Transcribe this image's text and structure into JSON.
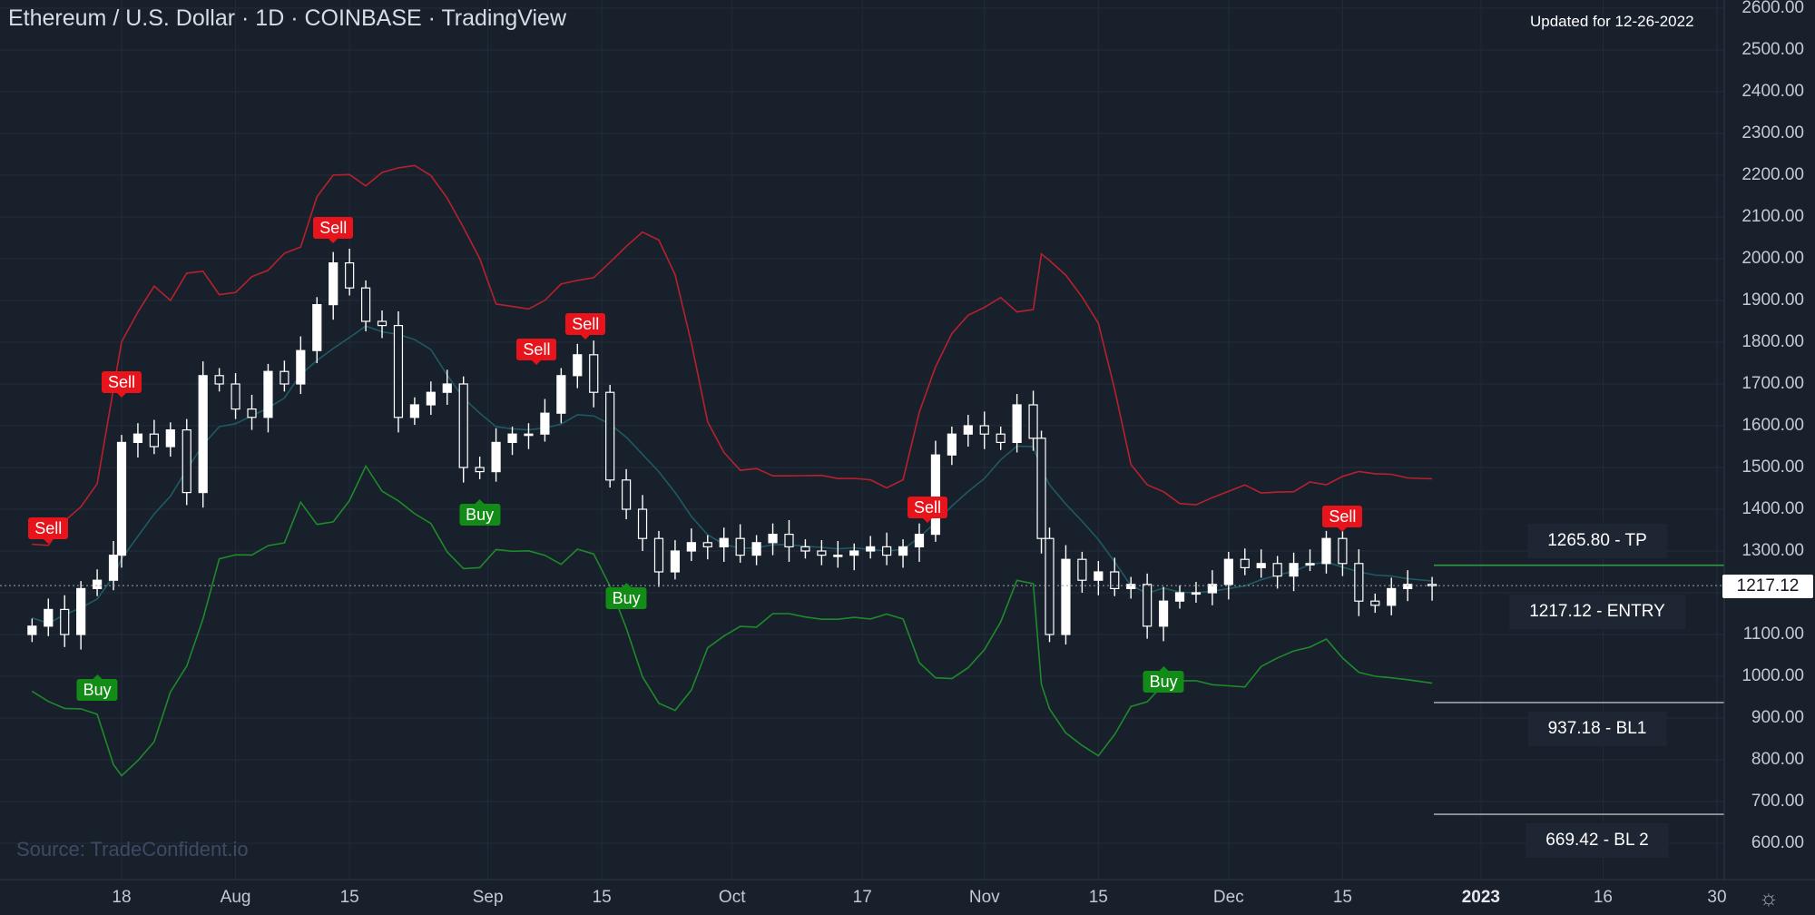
{
  "header": {
    "title": "Ethereum / U.S. Dollar · 1D · COINBASE · TradingView",
    "updated": "Updated for 12-26-2022"
  },
  "source": "Source: TradeConfident.io",
  "colors": {
    "background": "#18202c",
    "upper_band": "#b7212c",
    "lower_band": "#1e8a2a",
    "mid_line": "#1e5a62",
    "sell": "#e8141c",
    "buy": "#138c17",
    "tp_line": "#2e9a46",
    "level_line": "#a0a4ad"
  },
  "chart_data": {
    "type": "candlestick",
    "ylim": [
      550,
      2620
    ],
    "yticks": [
      "2600.00",
      "2500.00",
      "2400.00",
      "2300.00",
      "2200.00",
      "2100.00",
      "2000.00",
      "1900.00",
      "1800.00",
      "1700.00",
      "1600.00",
      "1500.00",
      "1400.00",
      "1300.00",
      "1200.00",
      "1100.00",
      "1000.00",
      "900.00",
      "800.00",
      "700.00",
      "600.00"
    ],
    "x_range": [
      "2022-07-07",
      "2023-01-30"
    ],
    "xticks": [
      {
        "date": "2022-07-18",
        "label": "18",
        "bold": false
      },
      {
        "date": "2022-08-01",
        "label": "Aug",
        "bold": false
      },
      {
        "date": "2022-08-15",
        "label": "15",
        "bold": false
      },
      {
        "date": "2022-09-01",
        "label": "Sep",
        "bold": false
      },
      {
        "date": "2022-09-15",
        "label": "15",
        "bold": false
      },
      {
        "date": "2022-10-01",
        "label": "Oct",
        "bold": false
      },
      {
        "date": "2022-10-17",
        "label": "17",
        "bold": false
      },
      {
        "date": "2022-11-01",
        "label": "Nov",
        "bold": false
      },
      {
        "date": "2022-11-15",
        "label": "15",
        "bold": false
      },
      {
        "date": "2022-12-01",
        "label": "Dec",
        "bold": false
      },
      {
        "date": "2022-12-15",
        "label": "15",
        "bold": false
      },
      {
        "date": "2023-01-01",
        "label": "2023",
        "bold": true
      },
      {
        "date": "2023-01-16",
        "label": "16",
        "bold": false
      },
      {
        "date": "2023-01-30",
        "label": "30",
        "bold": false
      }
    ],
    "close_series": [
      {
        "date": "2022-07-07",
        "close": 1120
      },
      {
        "date": "2022-07-09",
        "close": 1160
      },
      {
        "date": "2022-07-11",
        "close": 1100
      },
      {
        "date": "2022-07-13",
        "close": 1210
      },
      {
        "date": "2022-07-15",
        "close": 1230
      },
      {
        "date": "2022-07-17",
        "close": 1290
      },
      {
        "date": "2022-07-18",
        "close": 1560
      },
      {
        "date": "2022-07-20",
        "close": 1580
      },
      {
        "date": "2022-07-22",
        "close": 1550
      },
      {
        "date": "2022-07-24",
        "close": 1590
      },
      {
        "date": "2022-07-26",
        "close": 1440
      },
      {
        "date": "2022-07-28",
        "close": 1720
      },
      {
        "date": "2022-07-30",
        "close": 1700
      },
      {
        "date": "2022-08-01",
        "close": 1640
      },
      {
        "date": "2022-08-03",
        "close": 1620
      },
      {
        "date": "2022-08-05",
        "close": 1730
      },
      {
        "date": "2022-08-07",
        "close": 1700
      },
      {
        "date": "2022-08-09",
        "close": 1780
      },
      {
        "date": "2022-08-11",
        "close": 1890
      },
      {
        "date": "2022-08-13",
        "close": 1990
      },
      {
        "date": "2022-08-15",
        "close": 1930
      },
      {
        "date": "2022-08-17",
        "close": 1850
      },
      {
        "date": "2022-08-19",
        "close": 1840
      },
      {
        "date": "2022-08-21",
        "close": 1620
      },
      {
        "date": "2022-08-23",
        "close": 1650
      },
      {
        "date": "2022-08-25",
        "close": 1680
      },
      {
        "date": "2022-08-27",
        "close": 1700
      },
      {
        "date": "2022-08-29",
        "close": 1500
      },
      {
        "date": "2022-08-31",
        "close": 1490
      },
      {
        "date": "2022-09-02",
        "close": 1560
      },
      {
        "date": "2022-09-04",
        "close": 1580
      },
      {
        "date": "2022-09-06",
        "close": 1580
      },
      {
        "date": "2022-09-08",
        "close": 1630
      },
      {
        "date": "2022-09-10",
        "close": 1720
      },
      {
        "date": "2022-09-12",
        "close": 1770
      },
      {
        "date": "2022-09-14",
        "close": 1680
      },
      {
        "date": "2022-09-16",
        "close": 1470
      },
      {
        "date": "2022-09-18",
        "close": 1400
      },
      {
        "date": "2022-09-20",
        "close": 1330
      },
      {
        "date": "2022-09-22",
        "close": 1250
      },
      {
        "date": "2022-09-24",
        "close": 1300
      },
      {
        "date": "2022-09-26",
        "close": 1320
      },
      {
        "date": "2022-09-28",
        "close": 1310
      },
      {
        "date": "2022-09-30",
        "close": 1330
      },
      {
        "date": "2022-10-02",
        "close": 1290
      },
      {
        "date": "2022-10-04",
        "close": 1320
      },
      {
        "date": "2022-10-06",
        "close": 1340
      },
      {
        "date": "2022-10-08",
        "close": 1310
      },
      {
        "date": "2022-10-10",
        "close": 1300
      },
      {
        "date": "2022-10-12",
        "close": 1290
      },
      {
        "date": "2022-10-14",
        "close": 1290
      },
      {
        "date": "2022-10-16",
        "close": 1300
      },
      {
        "date": "2022-10-18",
        "close": 1310
      },
      {
        "date": "2022-10-20",
        "close": 1290
      },
      {
        "date": "2022-10-22",
        "close": 1310
      },
      {
        "date": "2022-10-24",
        "close": 1340
      },
      {
        "date": "2022-10-26",
        "close": 1530
      },
      {
        "date": "2022-10-28",
        "close": 1580
      },
      {
        "date": "2022-10-30",
        "close": 1600
      },
      {
        "date": "2022-11-01",
        "close": 1580
      },
      {
        "date": "2022-11-03",
        "close": 1560
      },
      {
        "date": "2022-11-05",
        "close": 1650
      },
      {
        "date": "2022-11-07",
        "close": 1570
      },
      {
        "date": "2022-11-08",
        "close": 1330
      },
      {
        "date": "2022-11-09",
        "close": 1100
      },
      {
        "date": "2022-11-11",
        "close": 1280
      },
      {
        "date": "2022-11-13",
        "close": 1230
      },
      {
        "date": "2022-11-15",
        "close": 1250
      },
      {
        "date": "2022-11-17",
        "close": 1210
      },
      {
        "date": "2022-11-19",
        "close": 1220
      },
      {
        "date": "2022-11-21",
        "close": 1120
      },
      {
        "date": "2022-11-23",
        "close": 1180
      },
      {
        "date": "2022-11-25",
        "close": 1200
      },
      {
        "date": "2022-11-27",
        "close": 1200
      },
      {
        "date": "2022-11-29",
        "close": 1220
      },
      {
        "date": "2022-12-01",
        "close": 1280
      },
      {
        "date": "2022-12-03",
        "close": 1260
      },
      {
        "date": "2022-12-05",
        "close": 1270
      },
      {
        "date": "2022-12-07",
        "close": 1240
      },
      {
        "date": "2022-12-09",
        "close": 1270
      },
      {
        "date": "2022-12-11",
        "close": 1270
      },
      {
        "date": "2022-12-13",
        "close": 1330
      },
      {
        "date": "2022-12-15",
        "close": 1270
      },
      {
        "date": "2022-12-17",
        "close": 1180
      },
      {
        "date": "2022-12-19",
        "close": 1170
      },
      {
        "date": "2022-12-21",
        "close": 1210
      },
      {
        "date": "2022-12-23",
        "close": 1220
      },
      {
        "date": "2022-12-26",
        "close": 1217.12
      }
    ],
    "signals": [
      {
        "type": "Sell",
        "date": "2022-07-09",
        "price": 1310
      },
      {
        "type": "Sell",
        "date": "2022-07-18",
        "price": 1660
      },
      {
        "type": "Buy",
        "date": "2022-07-15",
        "price": 1010
      },
      {
        "type": "Sell",
        "date": "2022-08-13",
        "price": 2030
      },
      {
        "type": "Buy",
        "date": "2022-08-31",
        "price": 1430
      },
      {
        "type": "Sell",
        "date": "2022-09-07",
        "price": 1740
      },
      {
        "type": "Sell",
        "date": "2022-09-13",
        "price": 1800
      },
      {
        "type": "Buy",
        "date": "2022-09-18",
        "price": 1230
      },
      {
        "type": "Sell",
        "date": "2022-10-25",
        "price": 1360
      },
      {
        "type": "Buy",
        "date": "2022-11-23",
        "price": 1030
      },
      {
        "type": "Sell",
        "date": "2022-12-15",
        "price": 1340
      }
    ],
    "levels": [
      {
        "price": 1265.8,
        "label": "1265.80 - TP"
      },
      {
        "price": 1217.12,
        "label": "1217.12 - ENTRY"
      },
      {
        "price": 937.18,
        "label": "937.18 - BL1"
      },
      {
        "price": 669.42,
        "label": "669.42 - BL 2"
      }
    ],
    "last_price": "1217.12"
  }
}
